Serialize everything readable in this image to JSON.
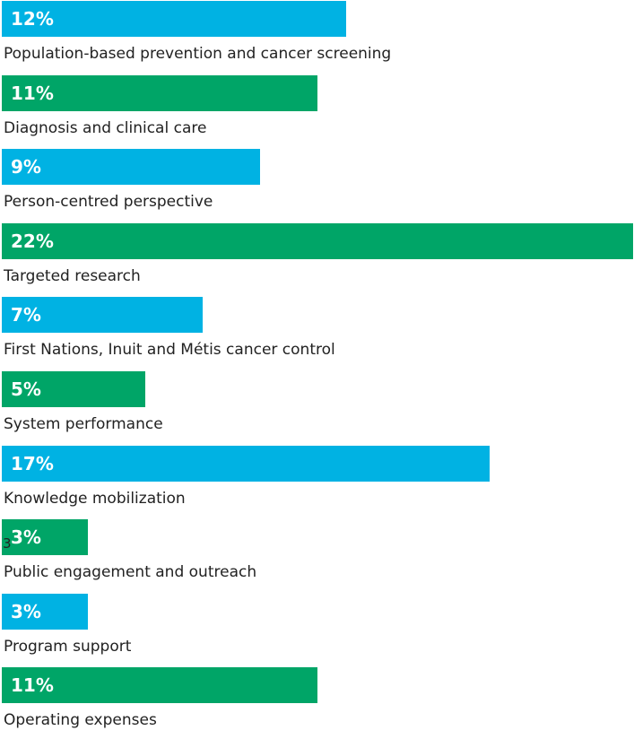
{
  "chart_data": {
    "type": "bar",
    "orientation": "horizontal",
    "max_value": 22,
    "colors": [
      "#00b2e3",
      "#00a567"
    ],
    "categories": [
      "Population-based prevention and cancer screening",
      "Diagnosis and clinical care",
      "Person-centred perspective",
      "Targeted research",
      "First Nations, Inuit and Métis cancer control",
      "System performance",
      "Knowledge mobilization",
      "Public engagement and outreach",
      "Program support",
      "Operating expenses"
    ],
    "values": [
      12,
      11,
      9,
      22,
      7,
      5,
      17,
      3,
      3,
      11
    ],
    "value_labels": [
      "12%",
      "11%",
      "9%",
      "22%",
      "7%",
      "5%",
      "17%",
      "3%",
      "3%",
      "11%"
    ]
  },
  "stray_text": "3"
}
